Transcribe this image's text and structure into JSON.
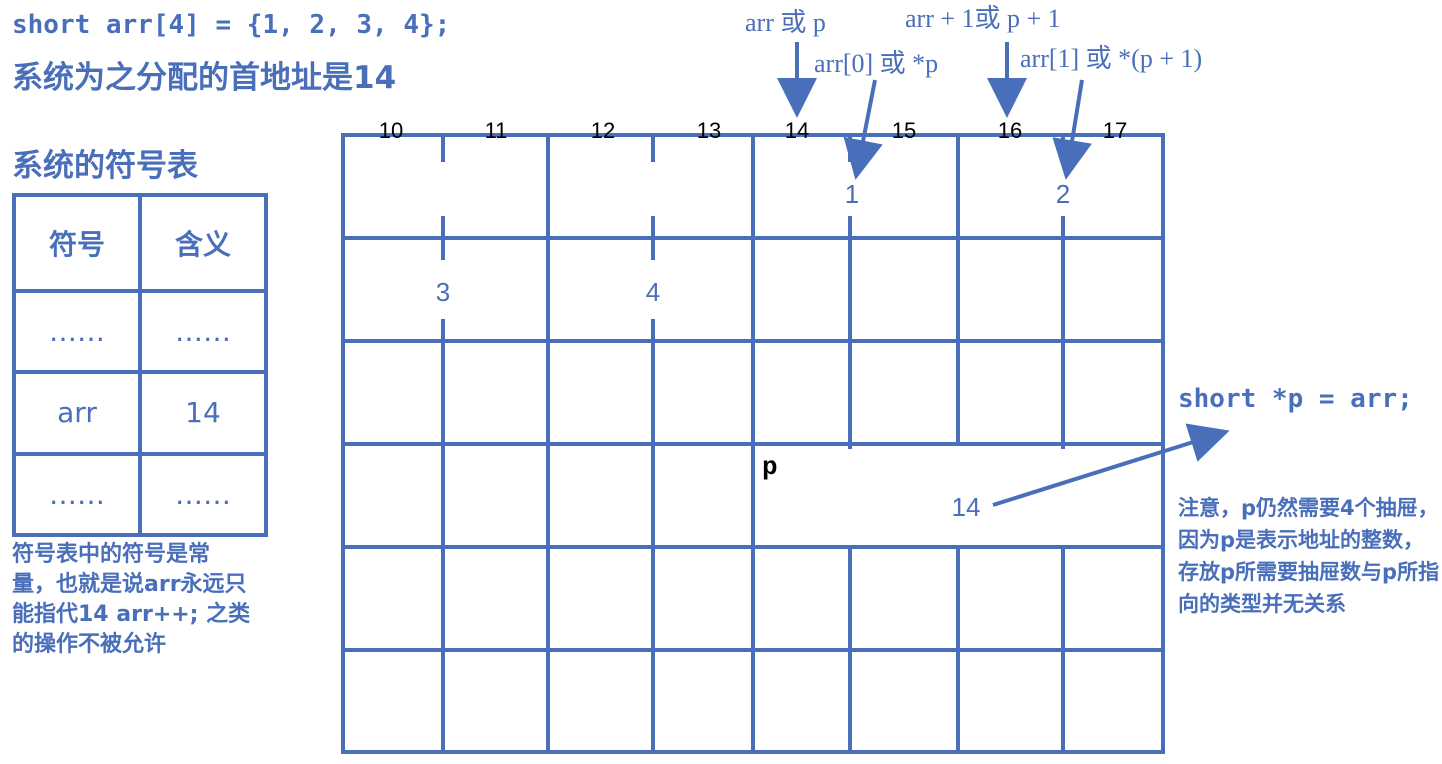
{
  "header": {
    "code": "short arr[4] = {1, 2, 3, 4};",
    "title": "系统为之分配的首地址是14"
  },
  "symbol_table": {
    "title": "系统的符号表",
    "headers": [
      "符号",
      "含义"
    ],
    "rows": [
      [
        "……",
        "……"
      ],
      [
        "arr",
        "14"
      ],
      [
        "……",
        "……"
      ]
    ],
    "note": "符号表中的符号是常量，也就是说arr永远只能指代14 arr++; 之类的操作不被允许"
  },
  "memory": {
    "addresses": [
      "10",
      "11",
      "12",
      "13",
      "14",
      "15",
      "16",
      "17"
    ],
    "values": [
      "1",
      "2",
      "3",
      "4"
    ],
    "pointer_label": "p",
    "pointer_value": "14"
  },
  "annotations": {
    "arr_or_p": "arr 或 p",
    "arr0_or_p": "arr[0] 或 *p",
    "arr_plus_1": "arr + 1或 p + 1",
    "arr1_or_p1": "arr[1] 或 *(p + 1)"
  },
  "pointer_decl": "short *p = arr;",
  "right_note": "注意，p仍然需要4个抽屉，因为p是表示地址的整数，存放p所需要抽屉数与p所指向的类型并无关系",
  "colors": {
    "accent": "#4a6fba",
    "text_dark": "#000000",
    "background": "#ffffff"
  }
}
